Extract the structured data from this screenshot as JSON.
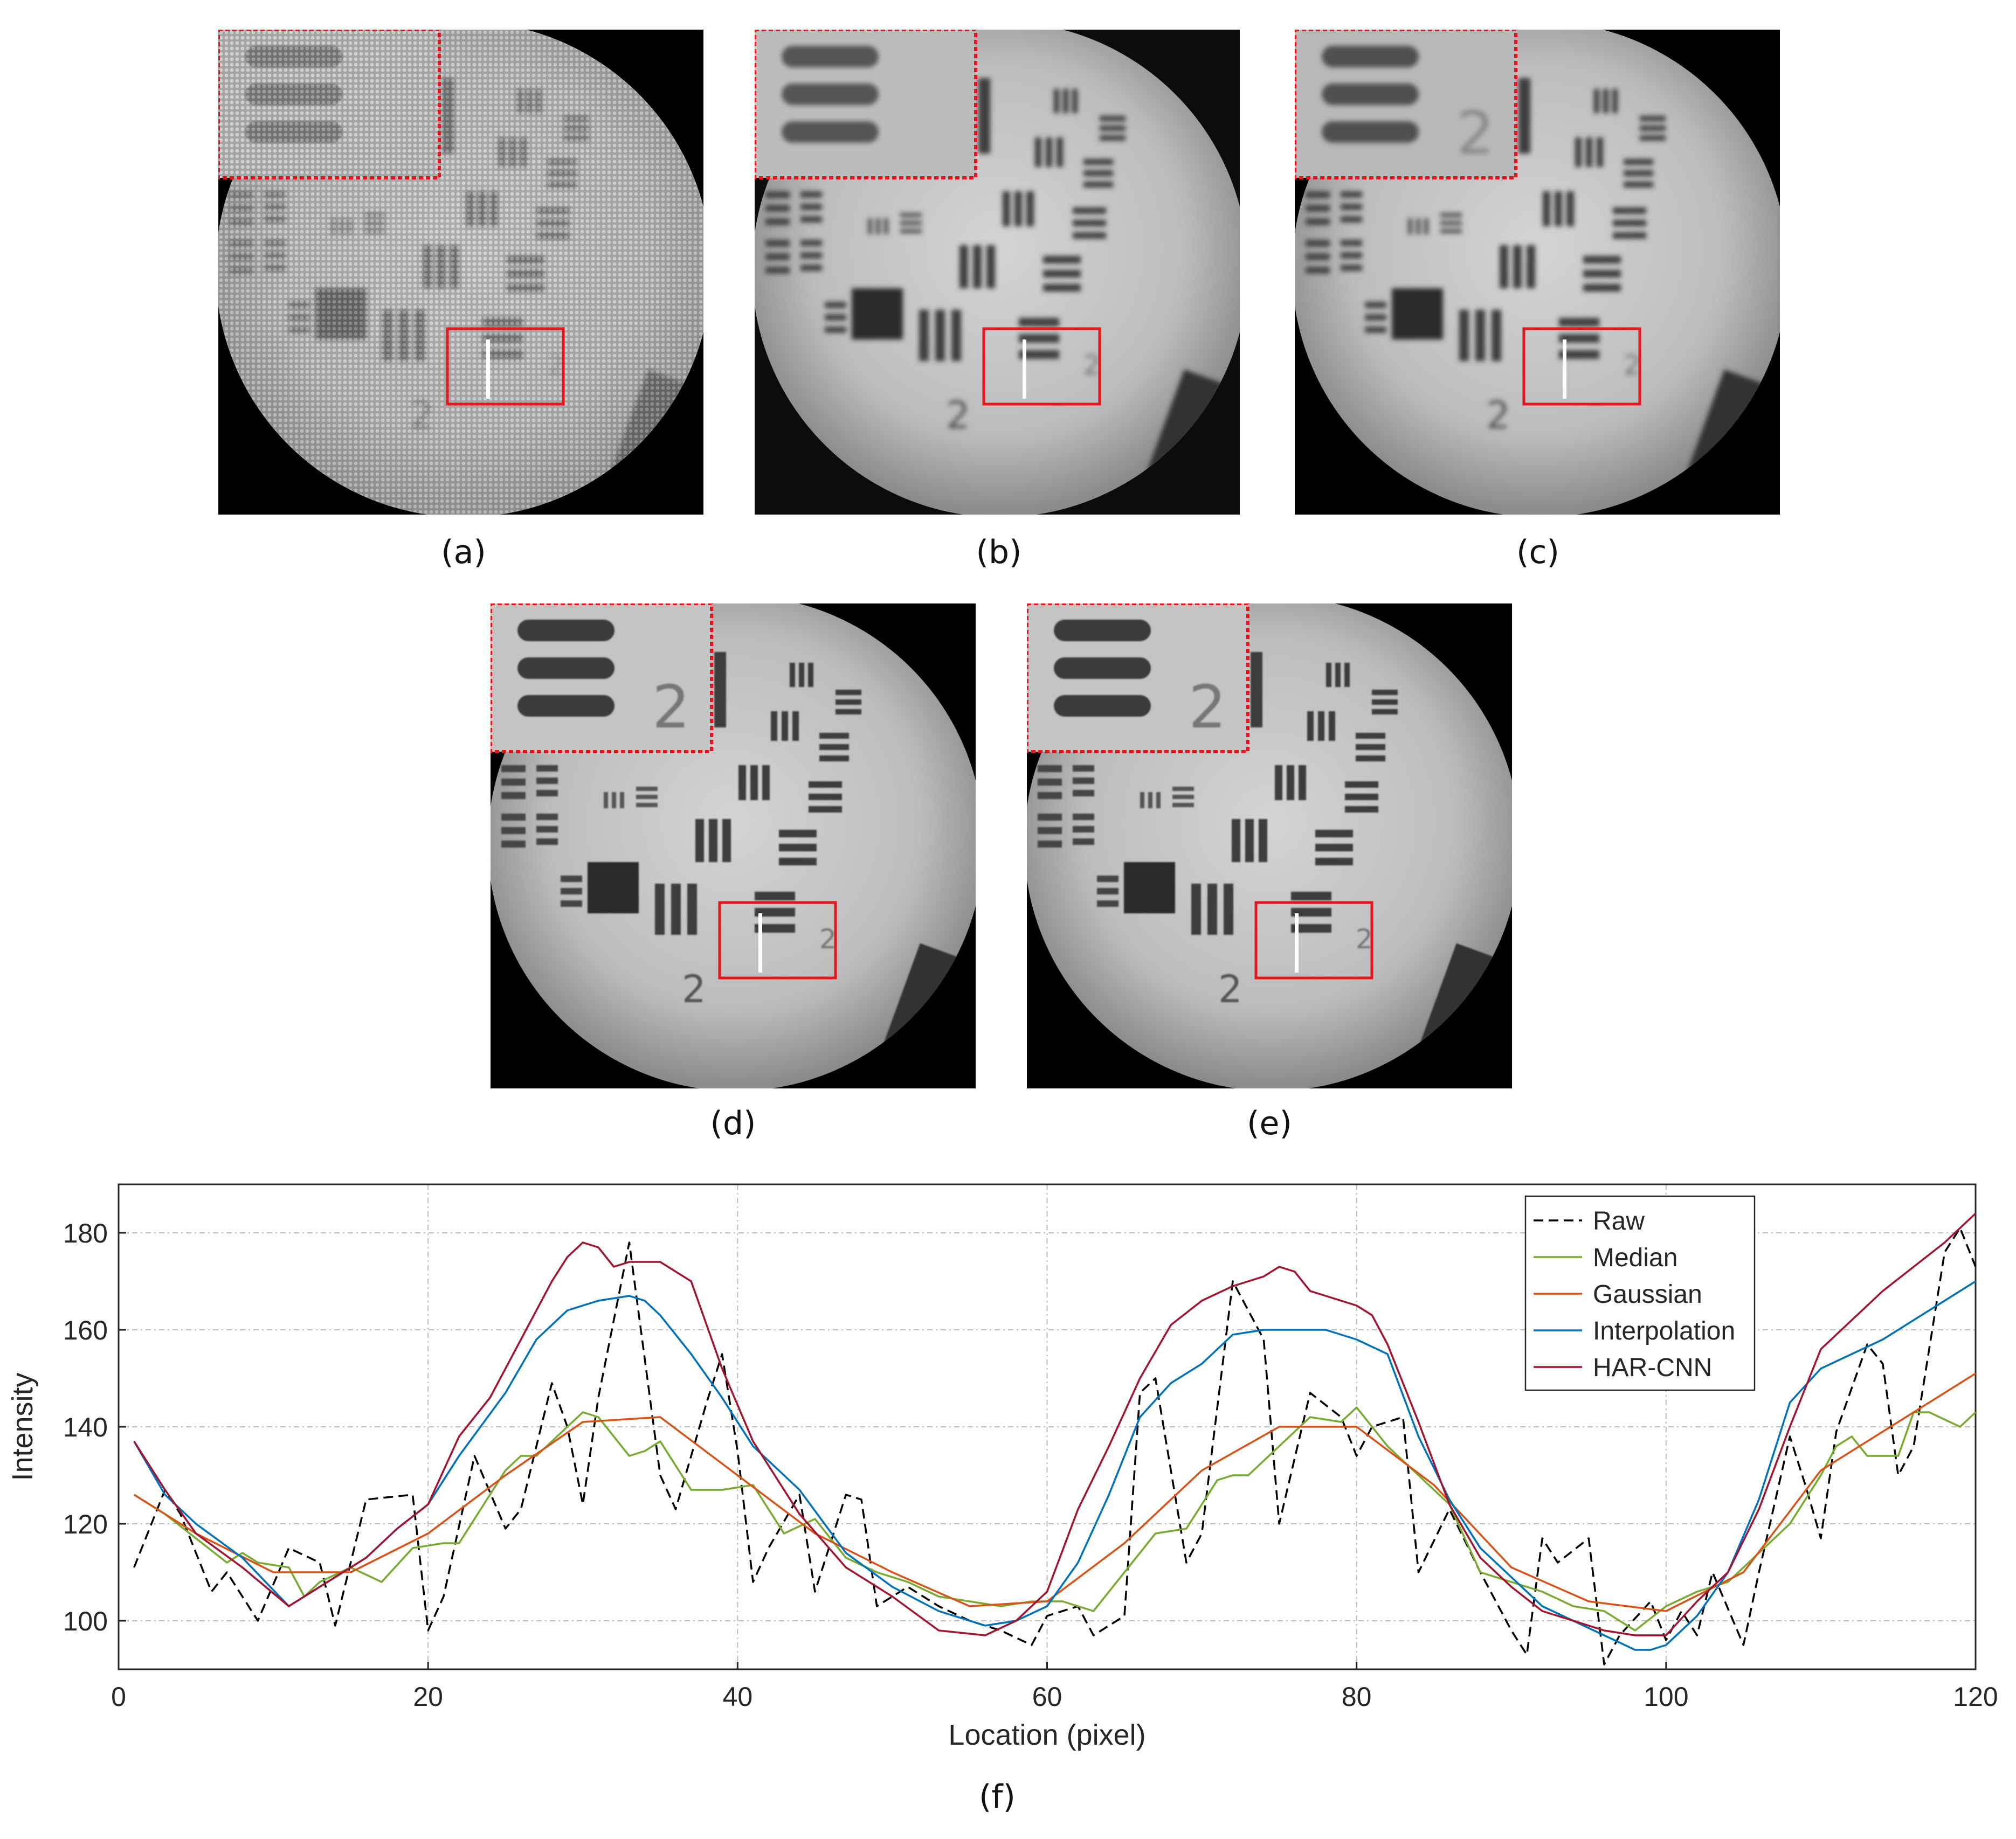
{
  "figure": {
    "panels": [
      {
        "id": "a",
        "caption": "(a)",
        "style": "honeycomb"
      },
      {
        "id": "b",
        "caption": "(b)",
        "style": "median"
      },
      {
        "id": "c",
        "caption": "(c)",
        "style": "gaussian"
      },
      {
        "id": "d",
        "caption": "(d)",
        "style": "interpolation"
      },
      {
        "id": "e",
        "caption": "(e)",
        "style": "har-cnn"
      }
    ],
    "plot_caption": "(f)"
  },
  "colors": {
    "highlight_box": "#e8141c",
    "raw": "#000000",
    "median": "#77ac30",
    "gaussian": "#d95319",
    "interpolation": "#0072bd",
    "harcnn": "#a2142f"
  },
  "chart_data": {
    "type": "line",
    "xlabel": "Location (pixel)",
    "ylabel": "Intensity",
    "xlim": [
      0,
      120
    ],
    "ylim": [
      90,
      190
    ],
    "xticks": [
      0,
      20,
      40,
      60,
      80,
      100,
      120
    ],
    "yticks": [
      100,
      120,
      140,
      160,
      180
    ],
    "grid": true,
    "legend_position": "top-right",
    "series": [
      {
        "name": "Raw",
        "style": "dashed",
        "color": "#000000",
        "x": [
          1,
          3,
          4,
          6,
          7,
          9,
          11,
          13,
          14,
          16,
          19,
          20,
          21,
          23,
          25,
          26,
          28,
          29,
          30,
          31,
          33,
          35,
          36,
          38,
          39,
          40,
          41,
          42,
          44,
          45,
          47,
          48,
          49,
          51,
          53,
          55,
          57,
          59,
          60,
          62,
          63,
          65,
          66,
          67,
          69,
          70,
          72,
          74,
          75,
          77,
          79,
          80,
          81,
          83,
          84,
          86,
          88,
          90,
          91,
          92,
          93,
          95,
          96,
          97,
          99,
          100,
          101,
          102,
          103,
          105,
          106,
          108,
          109,
          110,
          111,
          113,
          114,
          115,
          116,
          118,
          119,
          120
        ],
        "values": [
          111,
          127,
          122,
          106,
          110,
          100,
          115,
          112,
          99,
          125,
          126,
          98,
          105,
          134,
          119,
          123,
          149,
          140,
          124,
          146,
          178,
          130,
          123,
          145,
          155,
          135,
          108,
          115,
          126,
          106,
          126,
          125,
          103,
          107,
          103,
          100,
          98,
          95,
          101,
          103,
          97,
          101,
          147,
          150,
          112,
          118,
          170,
          158,
          120,
          147,
          142,
          134,
          140,
          142,
          110,
          123,
          110,
          98,
          93,
          117,
          112,
          117,
          91,
          97,
          104,
          96,
          102,
          97,
          110,
          95,
          110,
          138,
          128,
          117,
          139,
          157,
          153,
          130,
          136,
          176,
          181,
          173
        ]
      },
      {
        "name": "Median",
        "style": "solid",
        "color": "#77ac30",
        "x": [
          1,
          3,
          5,
          7,
          8,
          9,
          11,
          12,
          13,
          15,
          17,
          19,
          21,
          22,
          23,
          25,
          26,
          27,
          29,
          30,
          31,
          33,
          34,
          35,
          37,
          39,
          41,
          43,
          45,
          47,
          49,
          51,
          53,
          55,
          57,
          59,
          61,
          63,
          65,
          67,
          69,
          71,
          72,
          73,
          75,
          77,
          79,
          80,
          82,
          84,
          86,
          88,
          90,
          92,
          94,
          96,
          98,
          100,
          102,
          104,
          106,
          108,
          110,
          111,
          112,
          113,
          115,
          116,
          117,
          119,
          120
        ],
        "values": [
          126,
          122,
          117,
          112,
          114,
          112,
          111,
          105,
          108,
          111,
          108,
          115,
          116,
          116,
          121,
          131,
          134,
          134,
          140,
          143,
          142,
          134,
          135,
          137,
          127,
          127,
          128,
          118,
          121,
          113,
          110,
          108,
          105,
          104,
          103,
          104,
          104,
          102,
          110,
          118,
          119,
          129,
          130,
          130,
          136,
          142,
          141,
          144,
          136,
          130,
          124,
          110,
          108,
          106,
          103,
          102,
          98,
          103,
          106,
          108,
          114,
          120,
          130,
          136,
          138,
          134,
          134,
          143,
          143,
          140,
          143
        ]
      },
      {
        "name": "Gaussian",
        "style": "solid",
        "color": "#d95319",
        "x": [
          1,
          5,
          10,
          15,
          20,
          25,
          30,
          35,
          40,
          45,
          50,
          55,
          60,
          65,
          70,
          75,
          80,
          85,
          90,
          95,
          100,
          105,
          110,
          115,
          120
        ],
        "values": [
          126,
          118,
          110,
          110,
          118,
          130,
          141,
          142,
          130,
          118,
          110,
          103,
          104,
          116,
          131,
          140,
          140,
          128,
          111,
          104,
          102,
          110,
          131,
          141,
          151
        ]
      },
      {
        "name": "Interpolation",
        "style": "solid",
        "color": "#0072bd",
        "x": [
          1,
          3,
          5,
          8,
          11,
          13,
          16,
          18,
          20,
          22,
          25,
          27,
          29,
          31,
          33,
          34,
          35,
          37,
          39,
          41,
          44,
          47,
          50,
          53,
          56,
          58,
          60,
          62,
          64,
          66,
          68,
          70,
          72,
          74,
          76,
          78,
          80,
          82,
          84,
          86,
          88,
          90,
          92,
          94,
          96,
          98,
          99,
          100,
          102,
          104,
          106,
          108,
          110,
          112,
          114,
          116,
          118,
          120
        ],
        "values": [
          137,
          126,
          120,
          113,
          103,
          107,
          113,
          119,
          124,
          134,
          147,
          158,
          164,
          166,
          167,
          166,
          163,
          155,
          146,
          136,
          127,
          114,
          107,
          102,
          99,
          100,
          103,
          112,
          126,
          142,
          149,
          153,
          159,
          160,
          160,
          160,
          158,
          155,
          138,
          125,
          115,
          109,
          103,
          100,
          97,
          94,
          94,
          95,
          101,
          110,
          125,
          145,
          152,
          155,
          158,
          162,
          166,
          170
        ]
      },
      {
        "name": "HAR-CNN",
        "style": "solid",
        "color": "#a2142f",
        "x": [
          1,
          3,
          5,
          8,
          11,
          13,
          16,
          18,
          20,
          22,
          24,
          26,
          28,
          29,
          30,
          31,
          32,
          33,
          35,
          37,
          39,
          41,
          44,
          47,
          50,
          53,
          56,
          58,
          60,
          62,
          64,
          66,
          68,
          70,
          72,
          74,
          75,
          76,
          77,
          78,
          80,
          81,
          82,
          84,
          86,
          88,
          90,
          92,
          94,
          96,
          98,
          100,
          102,
          104,
          106,
          108,
          110,
          112,
          114,
          116,
          118,
          120
        ],
        "values": [
          137,
          127,
          118,
          111,
          103,
          107,
          113,
          119,
          124,
          138,
          146,
          158,
          170,
          175,
          178,
          177,
          173,
          174,
          174,
          170,
          152,
          137,
          122,
          111,
          105,
          98,
          97,
          100,
          106,
          123,
          136,
          150,
          161,
          166,
          169,
          171,
          173,
          172,
          168,
          167,
          165,
          163,
          157,
          141,
          124,
          113,
          107,
          102,
          100,
          98,
          97,
          97,
          104,
          110,
          123,
          140,
          156,
          162,
          168,
          173,
          178,
          184
        ]
      }
    ]
  }
}
